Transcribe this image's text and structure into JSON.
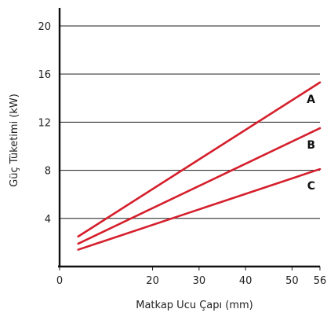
{
  "chart_data": {
    "type": "line",
    "title": "",
    "xlabel": "Matkap Ucu Çapı (mm)",
    "ylabel": "Güç Tüketimi (kW)",
    "xlim": [
      0,
      56
    ],
    "ylim": [
      0,
      21.5
    ],
    "xticks": [
      0,
      20,
      30,
      40,
      50,
      56
    ],
    "yticks": [
      4,
      8,
      12,
      16,
      20
    ],
    "grid": "horizontal",
    "series": [
      {
        "name": "A",
        "color": "#d51f2c",
        "x": [
          4,
          56
        ],
        "y": [
          2.5,
          15.3
        ]
      },
      {
        "name": "B",
        "color": "#d51f2c",
        "x": [
          4,
          56
        ],
        "y": [
          1.9,
          11.5
        ]
      },
      {
        "name": "C",
        "color": "#d51f2c",
        "x": [
          4,
          56
        ],
        "y": [
          1.4,
          8.1
        ]
      }
    ]
  }
}
